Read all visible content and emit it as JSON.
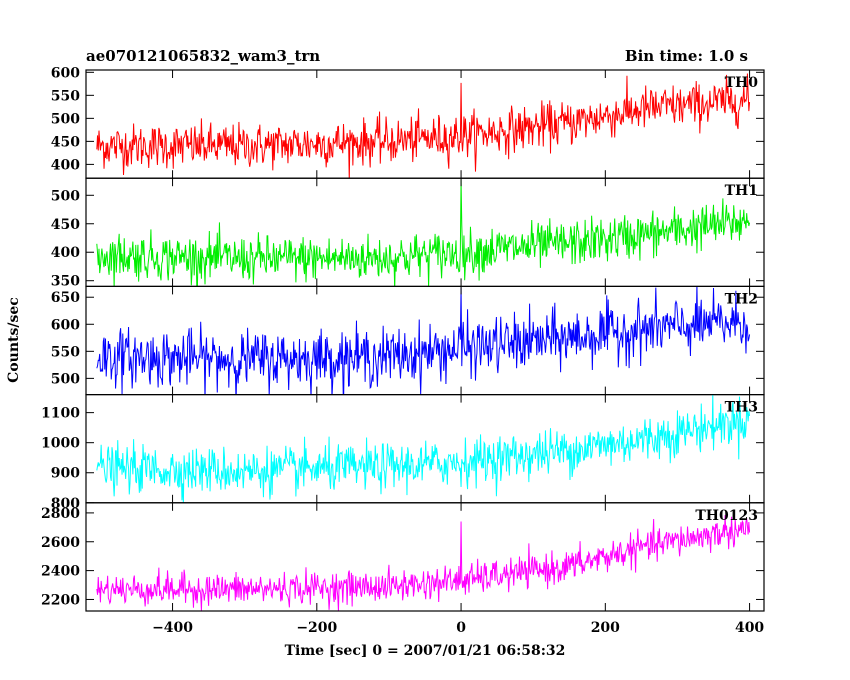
{
  "chart_data": {
    "type": "line",
    "title_left": "ae070121065832_wam3_trn",
    "title_right": "Bin time: 1.0 s",
    "xlabel": "Time [sec] 0 = 2007/01/21 06:58:32",
    "ylabel": "Counts/sec",
    "xlim": [
      -520,
      420
    ],
    "x_ticks": [
      -400,
      -200,
      0,
      200,
      400
    ],
    "x_tick_labels": [
      "−400",
      "−200",
      "0",
      "200",
      "400"
    ],
    "data_range": [
      -505,
      400
    ],
    "bin_time": 1.0,
    "panels": [
      {
        "name": "TH0",
        "color": "#ff0000",
        "ylim": [
          370,
          605
        ],
        "y_ticks": [
          400,
          450,
          500,
          550,
          600
        ],
        "trend": [
          [
            -505,
            440
          ],
          [
            -300,
            440
          ],
          [
            -100,
            450
          ],
          [
            0,
            462
          ],
          [
            150,
            490
          ],
          [
            250,
            520
          ],
          [
            400,
            540
          ]
        ],
        "noise_sd": 24,
        "spikes": [
          [
            0,
            577
          ]
        ]
      },
      {
        "name": "TH1",
        "color": "#00ee00",
        "ylim": [
          340,
          530
        ],
        "y_ticks": [
          350,
          400,
          450,
          500
        ],
        "trend": [
          [
            -505,
            395
          ],
          [
            -300,
            388
          ],
          [
            -100,
            390
          ],
          [
            0,
            400
          ],
          [
            150,
            415
          ],
          [
            250,
            430
          ],
          [
            400,
            455
          ]
        ],
        "noise_sd": 20,
        "spikes": [
          [
            0,
            528
          ]
        ]
      },
      {
        "name": "TH2",
        "color": "#0000ff",
        "ylim": [
          470,
          670
        ],
        "y_ticks": [
          500,
          550,
          600,
          650
        ],
        "trend": [
          [
            -505,
            540
          ],
          [
            -300,
            535
          ],
          [
            -100,
            540
          ],
          [
            0,
            555
          ],
          [
            150,
            575
          ],
          [
            250,
            590
          ],
          [
            400,
            605
          ]
        ],
        "noise_sd": 26,
        "spikes": [
          [
            0,
            668
          ]
        ]
      },
      {
        "name": "TH3",
        "color": "#00ffff",
        "ylim": [
          800,
          1160
        ],
        "y_ticks": [
          800,
          900,
          1000,
          1100
        ],
        "trend": [
          [
            -505,
            915
          ],
          [
            -300,
            905
          ],
          [
            -100,
            920
          ],
          [
            0,
            935
          ],
          [
            150,
            975
          ],
          [
            250,
            1010
          ],
          [
            400,
            1080
          ]
        ],
        "noise_sd": 38,
        "spikes": []
      },
      {
        "name": "TH0123",
        "color": "#ff00ff",
        "ylim": [
          2120,
          2870
        ],
        "y_ticks": [
          2200,
          2400,
          2600,
          2800
        ],
        "trend": [
          [
            -505,
            2270
          ],
          [
            -300,
            2270
          ],
          [
            -100,
            2290
          ],
          [
            0,
            2330
          ],
          [
            150,
            2430
          ],
          [
            250,
            2560
          ],
          [
            400,
            2700
          ]
        ],
        "noise_sd": 55,
        "spikes": [
          [
            0,
            2740
          ]
        ]
      }
    ]
  }
}
